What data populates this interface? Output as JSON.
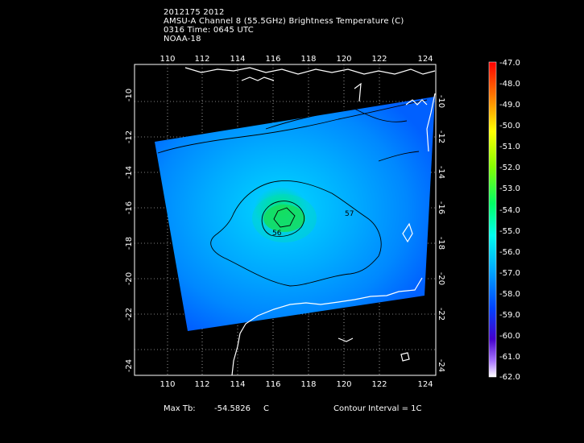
{
  "header": {
    "line1": "2012175 2012",
    "line2": "AMSU-A Channel 8 (55.5GHz) Brightness Temperature (C)",
    "line3": "0316 Time: 0645 UTC",
    "line4": "NOAA-18"
  },
  "map": {
    "lon_ticks": [
      "110",
      "112",
      "114",
      "116",
      "118",
      "120",
      "122",
      "124"
    ],
    "lat_ticks": [
      "-10",
      "-12",
      "-14",
      "-16",
      "-18",
      "-20",
      "-22",
      "-24"
    ],
    "contour_labels": [
      "56",
      "57"
    ],
    "colors": {
      "warm_core": "#22dd33",
      "mid": "#00c8ff",
      "cool": "#0060ff",
      "coast": "#ffffff"
    }
  },
  "colorbar": {
    "labels": [
      "-47.0",
      "-48.0",
      "-49.0",
      "-50.0",
      "-51.0",
      "-52.0",
      "-53.0",
      "-54.0",
      "-55.0",
      "-56.0",
      "-57.0",
      "-58.0",
      "-59.0",
      "-60.0",
      "-61.0",
      "-62.0"
    ]
  },
  "footer": {
    "max_label": "Max Tb:",
    "max_value": "-54.5826",
    "max_unit": "C",
    "contour": "Contour Interval = 1C"
  }
}
